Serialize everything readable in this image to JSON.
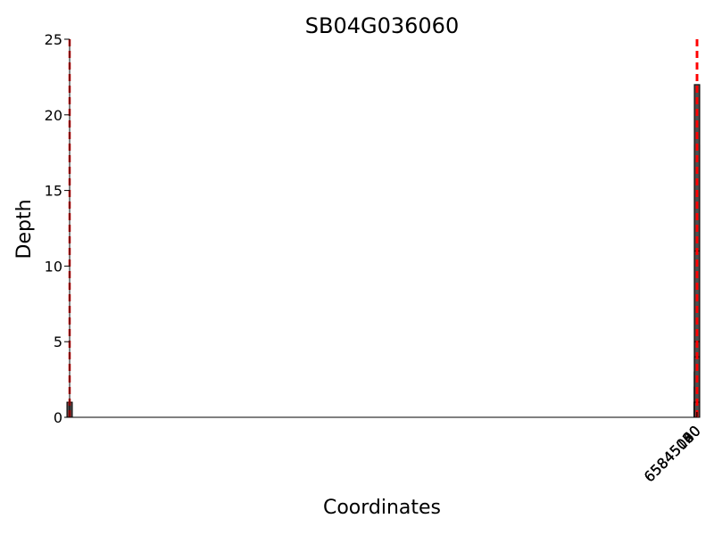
{
  "chart_data": {
    "type": "bar",
    "title": "SB04G036060",
    "xlabel": "Coordinates",
    "ylabel": "Depth",
    "xlim": [
      64844990,
      65845111
    ],
    "ylim": [
      0,
      25
    ],
    "x_ticks": [
      65845000,
      65845020,
      65845040,
      65845060,
      65845080,
      65845100
    ],
    "x_tick_labels": [
      "65845000",
      "65845020",
      "65845040",
      "65845060",
      "65845080",
      "65845100"
    ],
    "y_ticks": [
      0,
      5,
      10,
      15,
      20,
      25
    ],
    "y_tick_labels": [
      "0",
      "5",
      "10",
      "15",
      "20",
      "25"
    ],
    "grid": false,
    "bar_color": "#4d4d4d",
    "bar_edge_color": "#000000",
    "vline_color": "#ff0000",
    "vlines": [
      64844999.8,
      65845028.8,
      65845054,
      65845082.2,
      65845097.2
    ],
    "series": [
      {
        "x": [
          64844999.8,
          65845000.5,
          65845003,
          65845008,
          65845015.5,
          65845016.5,
          65845019.5,
          65845025.5,
          65845028.8,
          65845054,
          65845055,
          65845059,
          65845063,
          65845066,
          65845071,
          65845079.5,
          65845080.5,
          65845081.5,
          65845082.2,
          65845083,
          65845084,
          65845085,
          65845086,
          65845087,
          65845088,
          65845089,
          65845090,
          65845091,
          65845092,
          65845093,
          65845094,
          65845096,
          65845097.2,
          65845098,
          65845099
        ],
        "values": [
          1,
          1,
          1,
          1,
          1,
          2,
          1,
          1,
          3,
          3,
          1,
          1,
          2,
          1,
          1,
          3,
          17,
          1,
          18,
          22,
          11,
          5,
          4,
          2,
          2,
          3,
          1,
          1,
          1,
          1,
          1,
          3,
          5,
          4,
          1
        ]
      }
    ]
  }
}
